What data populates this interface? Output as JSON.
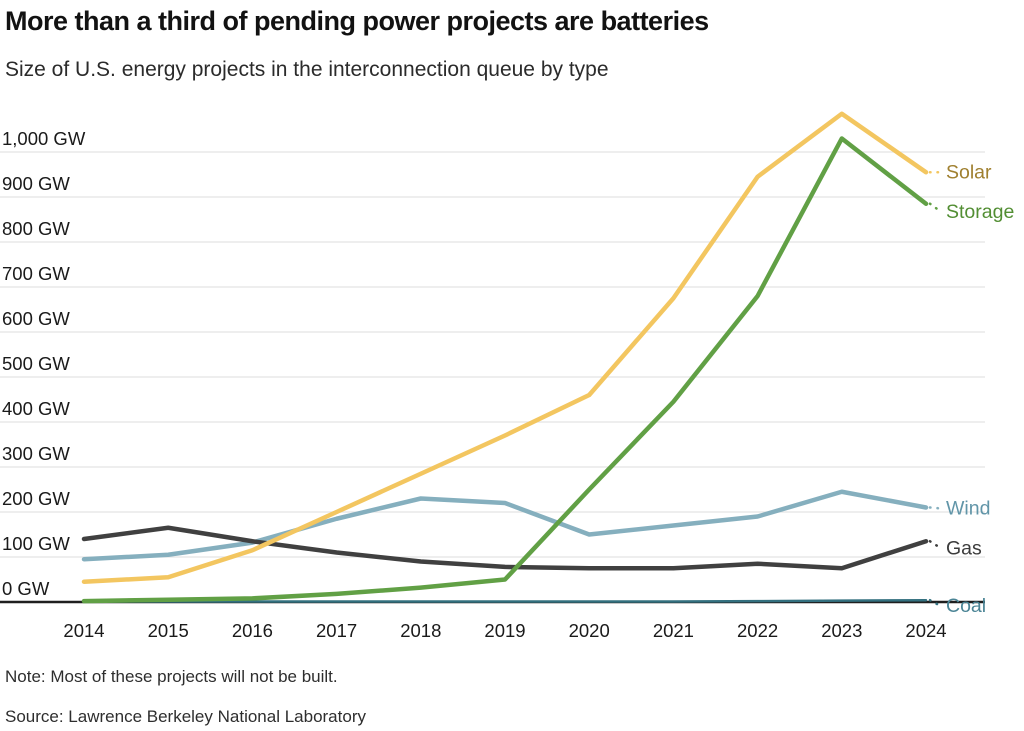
{
  "header": {
    "title": "More than a third of pending power projects are batteries",
    "subtitle": "Size of U.S. energy projects in the interconnection queue by type"
  },
  "footer": {
    "note": "Note: Most of these projects will not be built.",
    "source": "Source: Lawrence Berkeley National Laboratory"
  },
  "chart_data": {
    "type": "line",
    "title": "More than a third of pending power projects are batteries",
    "subtitle": "Size of U.S. energy projects in the interconnection queue by type",
    "unit": "GW",
    "x": [
      2014,
      2015,
      2016,
      2017,
      2018,
      2019,
      2020,
      2021,
      2022,
      2023,
      2024
    ],
    "x_tick_labels": [
      "2014",
      "2015",
      "2016",
      "2017",
      "2018",
      "2019",
      "2020",
      "2021",
      "2022",
      "2023",
      "2024"
    ],
    "y_ticks": [
      {
        "v": 0,
        "label": "0 GW"
      },
      {
        "v": 100,
        "label": "100 GW"
      },
      {
        "v": 200,
        "label": "200 GW"
      },
      {
        "v": 300,
        "label": "300 GW"
      },
      {
        "v": 400,
        "label": "400 GW"
      },
      {
        "v": 500,
        "label": "500 GW"
      },
      {
        "v": 600,
        "label": "600 GW"
      },
      {
        "v": 700,
        "label": "700 GW"
      },
      {
        "v": 800,
        "label": "800 GW"
      },
      {
        "v": 900,
        "label": "900 GW"
      },
      {
        "v": 1000,
        "label": "1,000 GW"
      }
    ],
    "ylim": [
      0,
      1090
    ],
    "grid": "horizontal",
    "legend_position": "labels-at-line-ends-right",
    "series": [
      {
        "name": "Wind",
        "color": "#85AFBE",
        "label_color": "#6195A8",
        "width": 4.5,
        "values": [
          95,
          105,
          132,
          185,
          230,
          220,
          150,
          170,
          190,
          245,
          210
        ]
      },
      {
        "name": "Gas",
        "color": "#404040",
        "label_color": "#3C3C3C",
        "width": 4.5,
        "values": [
          140,
          165,
          135,
          110,
          90,
          78,
          75,
          75,
          85,
          75,
          135
        ]
      },
      {
        "name": "Coal",
        "color": "#33707F",
        "label_color": "#4A8495",
        "width": 2.5,
        "values": [
          1,
          1,
          1,
          1,
          1,
          1,
          1,
          1,
          2,
          3,
          4
        ]
      },
      {
        "name": "Storage",
        "color": "#61A045",
        "label_color": "#528E33",
        "width": 4.5,
        "values": [
          2,
          5,
          8,
          18,
          32,
          50,
          250,
          445,
          680,
          1030,
          885
        ]
      },
      {
        "name": "Solar",
        "color": "#F3C660",
        "label_color": "#A08030",
        "width": 4.5,
        "values": [
          45,
          55,
          115,
          200,
          285,
          370,
          460,
          675,
          945,
          1085,
          955
        ]
      }
    ],
    "colors": {
      "grid": "#E4E4E4",
      "axis": "#1F1F1F",
      "tick_text": "#1A1A1A"
    }
  }
}
